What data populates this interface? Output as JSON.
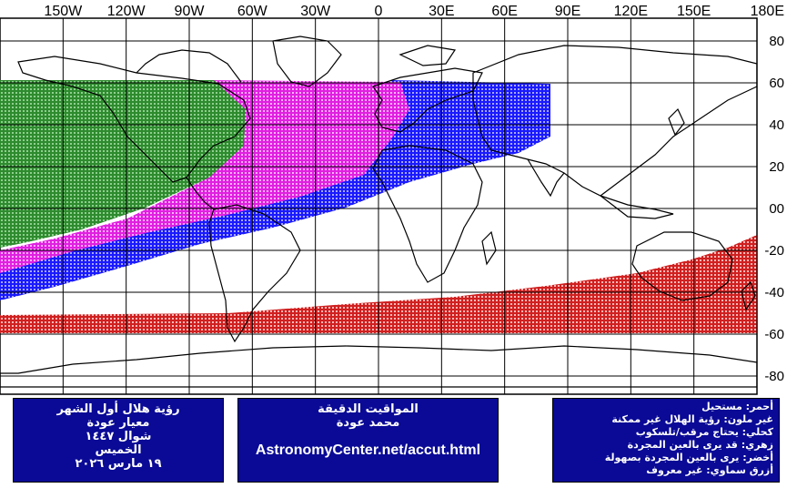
{
  "map": {
    "longitude_labels": [
      "150W",
      "120W",
      "90W",
      "60W",
      "30W",
      "0",
      "30E",
      "60E",
      "90E",
      "120E",
      "150E",
      "180E"
    ],
    "latitude_labels": [
      "80",
      "60",
      "40",
      "20",
      "00",
      "-20",
      "-40",
      "-60",
      "-80"
    ],
    "zones": [
      {
        "name": "green",
        "color": "#2e8b2e",
        "meaning": "visible_naked_eye_easily"
      },
      {
        "name": "magenta",
        "color": "#ff33ff",
        "meaning": "may_be_visible_naked_eye"
      },
      {
        "name": "blue",
        "color": "#1a1aff",
        "meaning": "needs_optical_aid"
      },
      {
        "name": "red",
        "color": "#e03030",
        "meaning": "impossible"
      }
    ]
  },
  "panels": {
    "left": {
      "line1": "رؤية هلال أول الشهر",
      "line2": "معيار عودة",
      "line3": "شوال ١٤٤٧",
      "line4": "الخميس",
      "line5": "١٩ مارس ٢٠٢٦"
    },
    "middle": {
      "line1": "المواقيت الدقيقة",
      "line2": "محمد عودة",
      "url": "AstronomyCenter.net/accut.html"
    },
    "right": {
      "line1": "أحمر: مستحيل",
      "line2": "غير ملون: رؤية الهلال غير ممكنة",
      "line3": "كحلي: يحتاج مرقب/تلسكوب",
      "line4": "زهري: قد يرى بالعين المجردة",
      "line5": "أخضر: يرى بالعين المجردة بصهولة",
      "line6": "أزرق سماوي: غير معروف"
    }
  }
}
